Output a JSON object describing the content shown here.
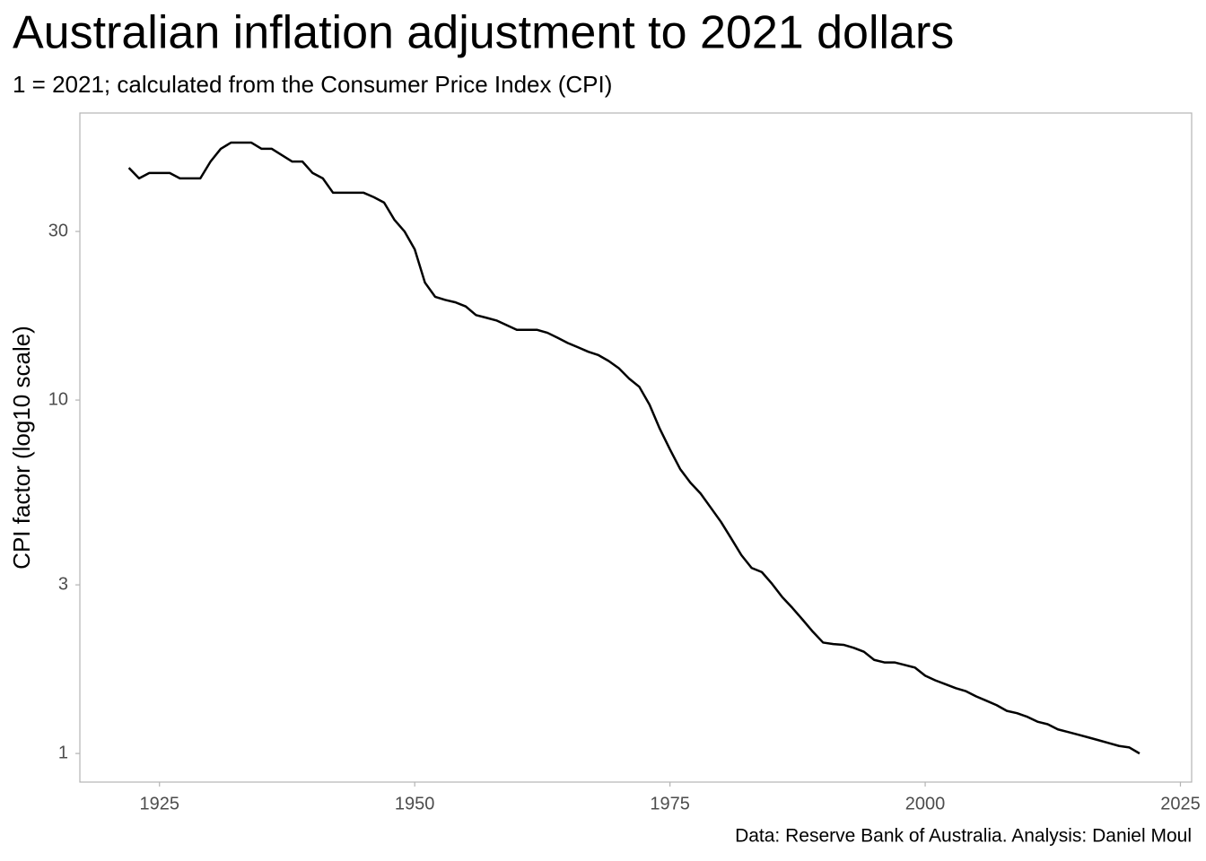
{
  "chart_data": {
    "type": "line",
    "title": "Australian inflation adjustment to 2021 dollars",
    "subtitle": "1 = 2021; calculated from the Consumer Price Index (CPI)",
    "y_label": "CPI factor (log10 scale)",
    "caption": "Data: Reserve Bank of Australia. Analysis: Daniel Moul",
    "log_y": true,
    "grid": false,
    "x": [
      1922,
      1923,
      1924,
      1925,
      1926,
      1927,
      1928,
      1929,
      1930,
      1931,
      1932,
      1933,
      1934,
      1935,
      1936,
      1937,
      1938,
      1939,
      1940,
      1941,
      1942,
      1943,
      1944,
      1945,
      1946,
      1947,
      1948,
      1949,
      1950,
      1951,
      1952,
      1953,
      1954,
      1955,
      1956,
      1957,
      1958,
      1959,
      1960,
      1961,
      1962,
      1963,
      1964,
      1965,
      1966,
      1967,
      1968,
      1969,
      1970,
      1971,
      1972,
      1973,
      1974,
      1975,
      1976,
      1977,
      1978,
      1979,
      1980,
      1981,
      1982,
      1983,
      1984,
      1985,
      1986,
      1987,
      1988,
      1989,
      1990,
      1991,
      1992,
      1993,
      1994,
      1995,
      1996,
      1997,
      1998,
      1999,
      2000,
      2001,
      2002,
      2003,
      2004,
      2005,
      2006,
      2007,
      2008,
      2009,
      2010,
      2011,
      2012,
      2013,
      2014,
      2015,
      2016,
      2017,
      2018,
      2019,
      2020,
      2021
    ],
    "series": [
      {
        "color": "#000000",
        "values": [
          45.4,
          42.4,
          43.9,
          43.9,
          43.9,
          42.4,
          42.4,
          42.4,
          47.3,
          51.4,
          53.5,
          53.5,
          53.5,
          51.4,
          51.4,
          49.3,
          47.3,
          47.3,
          43.9,
          42.4,
          38.6,
          38.6,
          38.6,
          38.6,
          37.5,
          36.2,
          32.4,
          30.0,
          26.7,
          21.5,
          19.6,
          19.2,
          18.9,
          18.4,
          17.4,
          17.1,
          16.8,
          16.3,
          15.8,
          15.8,
          15.8,
          15.5,
          15.0,
          14.5,
          14.1,
          13.7,
          13.4,
          12.9,
          12.3,
          11.5,
          10.9,
          9.7,
          8.3,
          7.25,
          6.38,
          5.84,
          5.44,
          4.96,
          4.52,
          4.06,
          3.64,
          3.35,
          3.26,
          3.02,
          2.77,
          2.58,
          2.39,
          2.21,
          2.06,
          2.04,
          2.03,
          1.99,
          1.94,
          1.84,
          1.81,
          1.81,
          1.78,
          1.75,
          1.66,
          1.61,
          1.57,
          1.53,
          1.5,
          1.45,
          1.41,
          1.37,
          1.32,
          1.3,
          1.27,
          1.23,
          1.21,
          1.17,
          1.15,
          1.13,
          1.11,
          1.09,
          1.07,
          1.05,
          1.04,
          1
        ]
      }
    ],
    "xlim": [
      1917.2,
      2026.1
    ],
    "xticks": [
      1925,
      1950,
      1975,
      2000,
      2025
    ],
    "ylim": [
      0.83,
      64.9
    ],
    "yticks": [
      1,
      3,
      10,
      30
    ]
  }
}
